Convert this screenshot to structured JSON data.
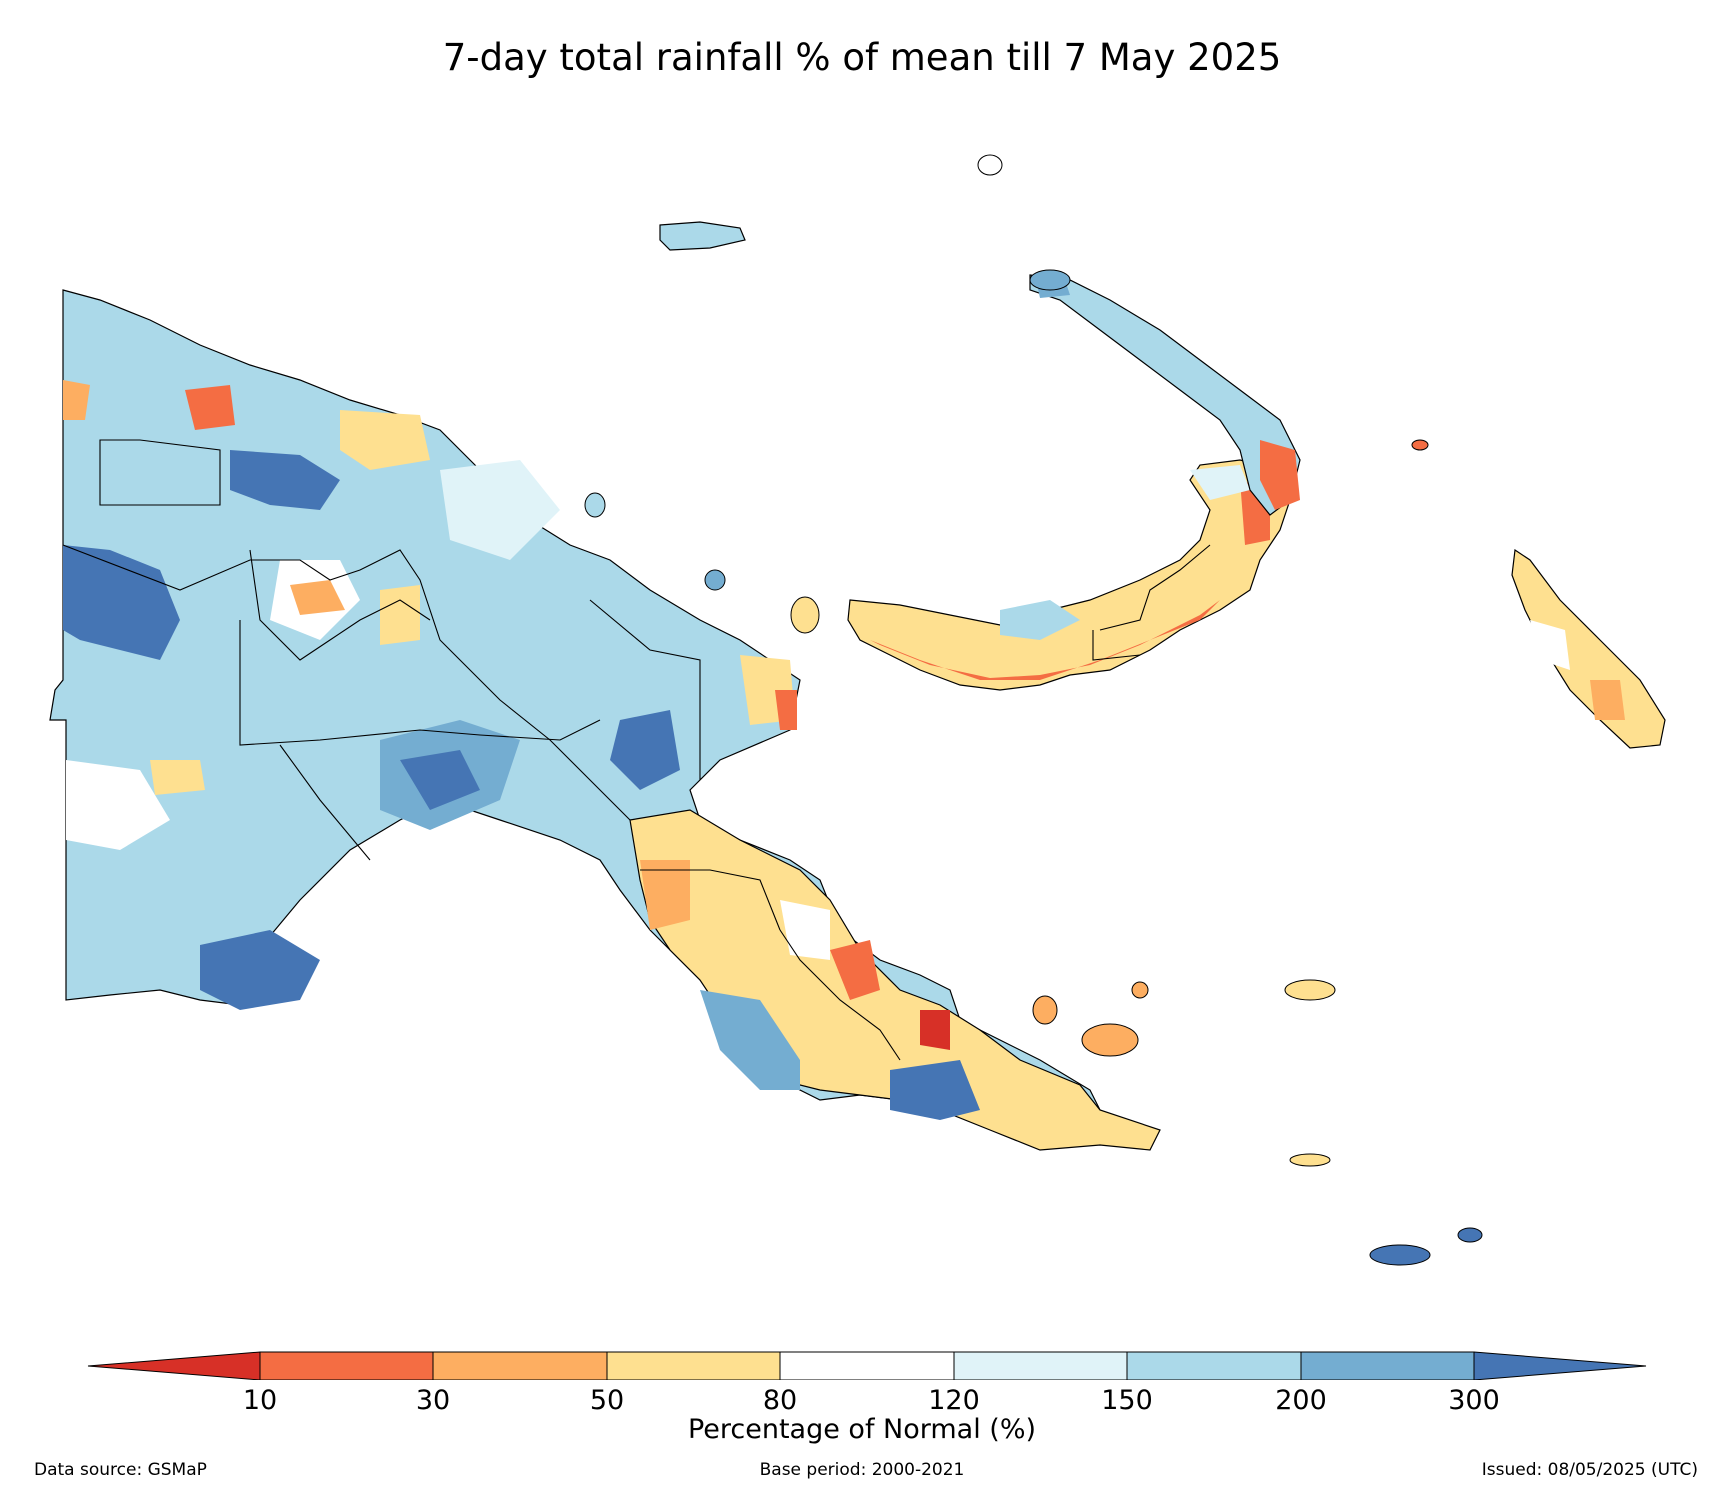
{
  "title": "7-day total rainfall % of mean till 7 May 2025",
  "colorbar": {
    "label": "Percentage of Normal (%)",
    "ticks": [
      "10",
      "30",
      "50",
      "80",
      "120",
      "150",
      "200",
      "300"
    ],
    "colors": {
      "below_10": "#d73027",
      "10_30": "#f46d43",
      "30_50": "#fdae61",
      "50_80": "#fee090",
      "80_120": "#ffffff",
      "120_150": "#e0f3f8",
      "150_200": "#abd9e9",
      "200_300": "#74add1",
      "above_300": "#4575b4"
    }
  },
  "footer": {
    "data_source": "Data source: GSMaP",
    "base_period": "Base period: 2000-2021",
    "issued": "Issued: 08/05/2025 (UTC)"
  }
}
